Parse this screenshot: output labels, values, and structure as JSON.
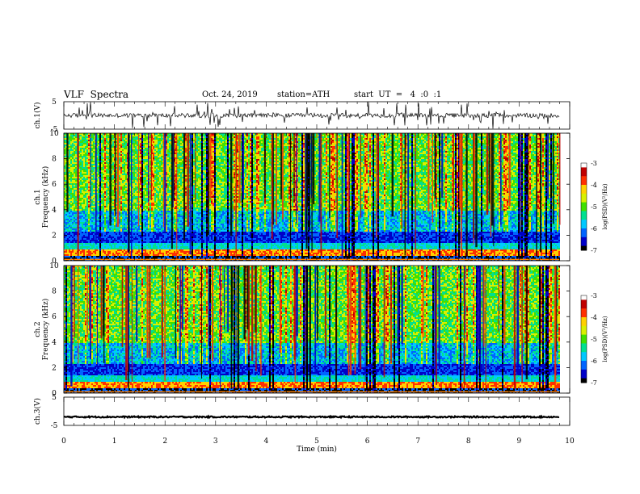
{
  "header": {
    "title": "VLF  Spectra",
    "date": "Oct. 24, 2019",
    "station": "station=ATH",
    "start": "start  UT  =   4  :0  :1"
  },
  "colors": {
    "scale": [
      "#000000",
      "#0000c8",
      "#0064ff",
      "#00c8ff",
      "#00e090",
      "#40e000",
      "#d8f000",
      "#ffd000",
      "#ff3000",
      "#c00000",
      "#ffffff"
    ],
    "trace": "#000000"
  },
  "chart_data": [
    {
      "type": "line",
      "name": "ch1-waveform",
      "ylabel": "ch.1(V)",
      "ylim": [
        -5,
        5
      ],
      "yticks": [
        "5",
        "-5"
      ],
      "baseline": 0.0,
      "xlim": [
        0,
        10
      ]
    },
    {
      "type": "heatmap",
      "name": "ch1-spectrogram",
      "ylabel_top": "ch.1",
      "ylabel": "Frequency  (kHz)",
      "ylim": [
        0,
        10
      ],
      "yticks": [
        "0",
        "2",
        "4",
        "6",
        "8",
        "10"
      ],
      "xlim": [
        0,
        9.8
      ],
      "colorbar": {
        "label": "log(PSD)(V²/Hz)",
        "range": [
          -7,
          -3
        ],
        "ticks": [
          "-3",
          "-4",
          "-5",
          "-6",
          "-7"
        ]
      }
    },
    {
      "type": "heatmap",
      "name": "ch2-spectrogram",
      "ylabel_top": "ch.2",
      "ylabel": "Frequency  (kHz)",
      "ylim": [
        0,
        10
      ],
      "yticks": [
        "0",
        "2",
        "4",
        "6",
        "8",
        "10"
      ],
      "xlim": [
        0,
        9.8
      ],
      "colorbar": {
        "label": "log(PSD)(V²/Hz)",
        "range": [
          -7,
          -3
        ],
        "ticks": [
          "-3",
          "-4",
          "-5",
          "-6",
          "-7"
        ]
      }
    },
    {
      "type": "line",
      "name": "ch3-waveform",
      "ylabel": "ch.3(V)",
      "ylim": [
        -5,
        5
      ],
      "yticks": [
        "5",
        "-5"
      ],
      "baseline": -2.0,
      "xlim": [
        0,
        10
      ]
    }
  ],
  "xaxis": {
    "label": "Time  (min)",
    "range": [
      0,
      10
    ],
    "ticks": [
      "0",
      "1",
      "2",
      "3",
      "4",
      "5",
      "6",
      "7",
      "8",
      "9",
      "10"
    ]
  }
}
